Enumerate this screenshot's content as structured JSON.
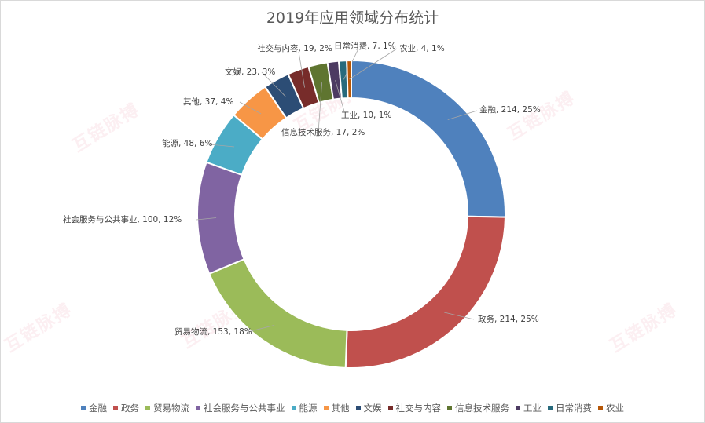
{
  "chart_data": {
    "type": "pie",
    "variant": "donut",
    "title": "2019年应用领域分布统计",
    "slices": [
      {
        "name": "金融",
        "value": 214,
        "percent": "25%",
        "color": "#4f81bd"
      },
      {
        "name": "政务",
        "value": 214,
        "percent": "25%",
        "color": "#c0504d"
      },
      {
        "name": "贸易物流",
        "value": 153,
        "percent": "18%",
        "color": "#9bbb59"
      },
      {
        "name": "社会服务与公共事业",
        "value": 100,
        "percent": "12%",
        "color": "#8064a2"
      },
      {
        "name": "能源",
        "value": 48,
        "percent": "6%",
        "color": "#4bacc6"
      },
      {
        "name": "其他",
        "value": 37,
        "percent": "4%",
        "color": "#f79646"
      },
      {
        "name": "文娱",
        "value": 23,
        "percent": "3%",
        "color": "#2c4d75"
      },
      {
        "name": "社交与内容",
        "value": 19,
        "percent": "2%",
        "color": "#772c2a"
      },
      {
        "name": "信息技术服务",
        "value": 17,
        "percent": "2%",
        "color": "#5f7530"
      },
      {
        "name": "工业",
        "value": 10,
        "percent": "1%",
        "color": "#4d3b62"
      },
      {
        "name": "日常消费",
        "value": 7,
        "percent": "1%",
        "color": "#276a7c"
      },
      {
        "name": "农业",
        "value": 4,
        "percent": "1%",
        "color": "#b65708"
      }
    ],
    "legend_position": "bottom"
  },
  "watermark": {
    "text": "互链脉搏"
  }
}
